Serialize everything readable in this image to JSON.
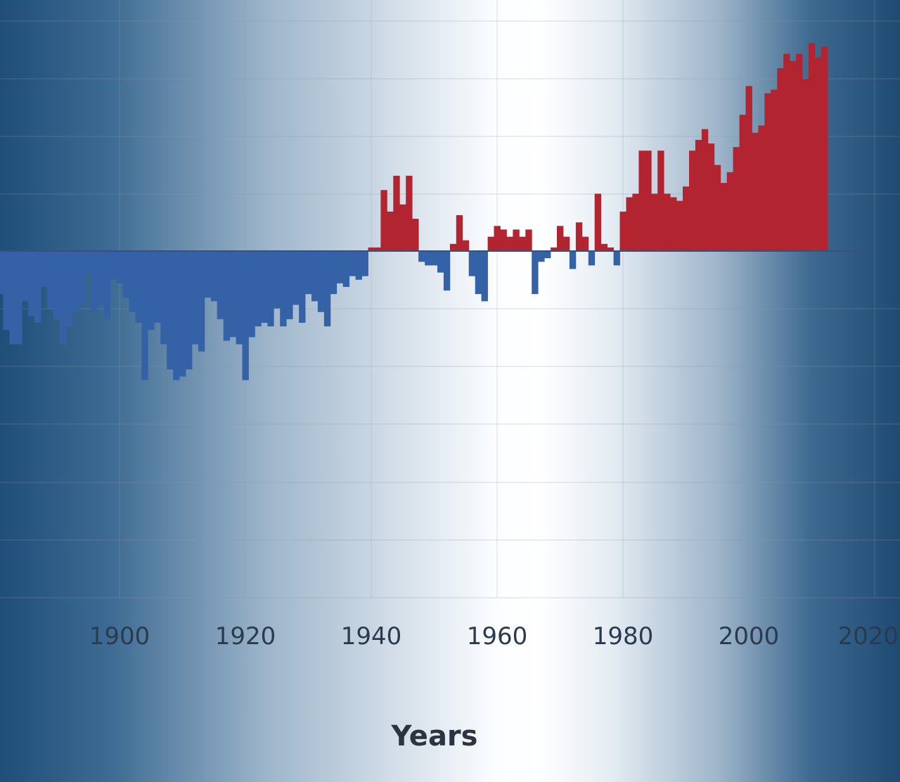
{
  "chart_data": {
    "type": "bar",
    "title": "",
    "xlabel": "Years",
    "ylabel": "",
    "xlim": [
      1881,
      2020
    ],
    "ylim": [
      -0.6,
      0.6
    ],
    "grid": true,
    "legend": "none",
    "colors": {
      "positive": "#b32431",
      "negative": "#3562a7",
      "grid": "#8797aa"
    },
    "x_ticks": [
      "1900",
      "1920",
      "1940",
      "1960",
      "1980",
      "2000",
      "2020"
    ],
    "x": [
      1881,
      1882,
      1883,
      1884,
      1885,
      1886,
      1887,
      1888,
      1889,
      1890,
      1891,
      1892,
      1893,
      1894,
      1895,
      1896,
      1897,
      1898,
      1899,
      1900,
      1901,
      1902,
      1903,
      1904,
      1905,
      1906,
      1907,
      1908,
      1909,
      1910,
      1911,
      1912,
      1913,
      1914,
      1915,
      1916,
      1917,
      1918,
      1919,
      1920,
      1921,
      1922,
      1923,
      1924,
      1925,
      1926,
      1927,
      1928,
      1929,
      1930,
      1931,
      1932,
      1933,
      1934,
      1935,
      1936,
      1937,
      1938,
      1939,
      1940,
      1941,
      1942,
      1943,
      1944,
      1945,
      1946,
      1947,
      1948,
      1949,
      1950,
      1951,
      1952,
      1953,
      1954,
      1955,
      1956,
      1957,
      1958,
      1959,
      1960,
      1961,
      1962,
      1963,
      1964,
      1965,
      1966,
      1967,
      1968,
      1969,
      1970,
      1971,
      1972,
      1973,
      1974,
      1975,
      1976,
      1977,
      1978,
      1979,
      1980,
      1981,
      1982,
      1983,
      1984,
      1985,
      1986,
      1987,
      1988,
      1989,
      1990,
      1991,
      1992,
      1993,
      1994,
      1995,
      1996,
      1997,
      1998,
      1999,
      2000,
      2001,
      2002,
      2003,
      2004,
      2005,
      2006,
      2007,
      2008,
      2009,
      2010,
      2011,
      2012
    ],
    "values": [
      -0.12,
      -0.22,
      -0.26,
      -0.26,
      -0.14,
      -0.18,
      -0.2,
      -0.1,
      -0.16,
      -0.19,
      -0.26,
      -0.21,
      -0.17,
      -0.15,
      -0.06,
      -0.17,
      -0.15,
      -0.19,
      -0.08,
      -0.09,
      -0.13,
      -0.17,
      -0.2,
      -0.36,
      -0.22,
      -0.2,
      -0.26,
      -0.33,
      -0.36,
      -0.35,
      -0.33,
      -0.26,
      -0.28,
      -0.13,
      -0.14,
      -0.19,
      -0.25,
      -0.24,
      -0.26,
      -0.36,
      -0.24,
      -0.21,
      -0.2,
      -0.21,
      -0.16,
      -0.21,
      -0.19,
      -0.15,
      -0.2,
      -0.12,
      -0.14,
      -0.17,
      -0.21,
      -0.12,
      -0.09,
      -0.1,
      -0.07,
      -0.08,
      -0.07,
      0.01,
      0.01,
      0.17,
      0.11,
      0.21,
      0.13,
      0.21,
      0.09,
      -0.03,
      -0.04,
      -0.04,
      -0.06,
      -0.11,
      0.02,
      0.1,
      0.03,
      -0.07,
      -0.12,
      -0.14,
      0.04,
      0.07,
      0.06,
      0.04,
      0.06,
      0.04,
      0.06,
      -0.12,
      -0.03,
      -0.02,
      0.01,
      0.07,
      0.04,
      -0.05,
      0.08,
      0.04,
      -0.04,
      0.16,
      0.02,
      0.01,
      -0.04,
      0.11,
      0.15,
      0.16,
      0.28,
      0.28,
      0.16,
      0.28,
      0.16,
      0.15,
      0.14,
      0.18,
      0.28,
      0.31,
      0.34,
      0.3,
      0.24,
      0.19,
      0.22,
      0.29,
      0.38,
      0.46,
      0.33,
      0.35,
      0.44,
      0.45,
      0.51,
      0.55,
      0.53,
      0.55,
      0.48,
      0.58,
      0.54,
      0.57
    ]
  }
}
